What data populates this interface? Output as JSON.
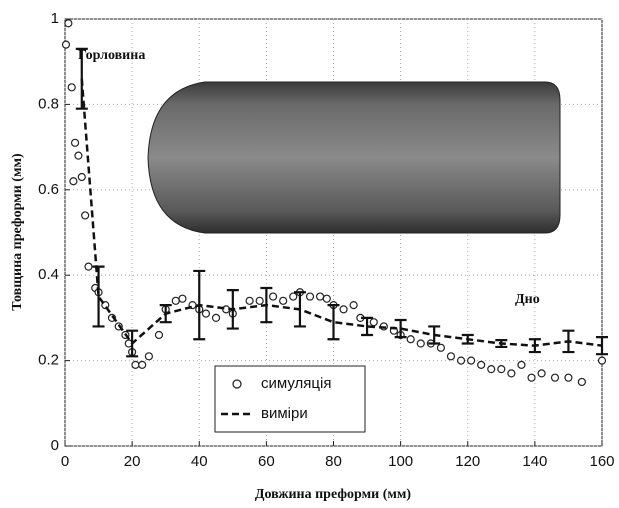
{
  "chart_data": {
    "type": "line",
    "x_label": "Довжина преформи (мм)",
    "y_label": "Товщина преформи (мм)",
    "annotations": [
      "Горловина",
      "Дно"
    ],
    "xlim": [
      0,
      160
    ],
    "xticks": [
      0,
      20,
      40,
      60,
      80,
      100,
      120,
      140,
      160
    ],
    "ylim": [
      0,
      1
    ],
    "yticks": [
      0,
      0.2,
      0.4,
      0.6,
      0.8,
      1
    ],
    "grid": true,
    "legend": "lower center",
    "series": [
      {
        "name": "симуляція",
        "color": "#222222",
        "marker": "circle",
        "x": [
          0.3,
          1,
          2,
          2.5,
          3,
          4,
          5,
          6,
          7,
          9,
          10,
          12,
          14,
          16,
          18,
          19,
          20,
          21,
          23,
          25,
          28,
          30,
          33,
          35,
          38,
          40,
          42,
          45,
          48,
          50,
          55,
          58,
          62,
          65,
          68,
          70,
          73,
          76,
          78,
          80,
          83,
          86,
          88,
          92,
          95,
          98,
          100,
          103,
          106,
          109,
          112,
          115,
          118,
          121,
          124,
          127,
          130,
          133,
          136,
          139,
          142,
          146,
          150,
          154,
          160
        ],
        "values": [
          0.94,
          0.99,
          0.84,
          0.62,
          0.71,
          0.68,
          0.63,
          0.54,
          0.42,
          0.37,
          0.36,
          0.33,
          0.3,
          0.28,
          0.26,
          0.24,
          0.22,
          0.19,
          0.19,
          0.21,
          0.26,
          0.32,
          0.34,
          0.345,
          0.33,
          0.32,
          0.31,
          0.3,
          0.32,
          0.31,
          0.34,
          0.34,
          0.35,
          0.34,
          0.35,
          0.36,
          0.35,
          0.35,
          0.345,
          0.33,
          0.32,
          0.33,
          0.3,
          0.29,
          0.28,
          0.27,
          0.26,
          0.25,
          0.24,
          0.24,
          0.23,
          0.21,
          0.2,
          0.2,
          0.19,
          0.18,
          0.18,
          0.17,
          0.19,
          0.16,
          0.17,
          0.16,
          0.16,
          0.15,
          0.2
        ]
      },
      {
        "name": "виміри",
        "color": "#111111",
        "dash": true,
        "x": [
          5,
          10,
          20,
          30,
          40,
          50,
          60,
          70,
          80,
          90,
          100,
          110,
          120,
          130,
          140,
          150,
          160
        ],
        "values": [
          0.86,
          0.35,
          0.24,
          0.31,
          0.33,
          0.32,
          0.33,
          0.32,
          0.29,
          0.28,
          0.275,
          0.26,
          0.25,
          0.24,
          0.235,
          0.245,
          0.235
        ],
        "errors": [
          0.07,
          0.07,
          0.03,
          0.02,
          0.08,
          0.045,
          0.04,
          0.04,
          0.04,
          0.02,
          0.02,
          0.02,
          0.01,
          0.008,
          0.015,
          0.025,
          0.02
        ]
      }
    ]
  }
}
